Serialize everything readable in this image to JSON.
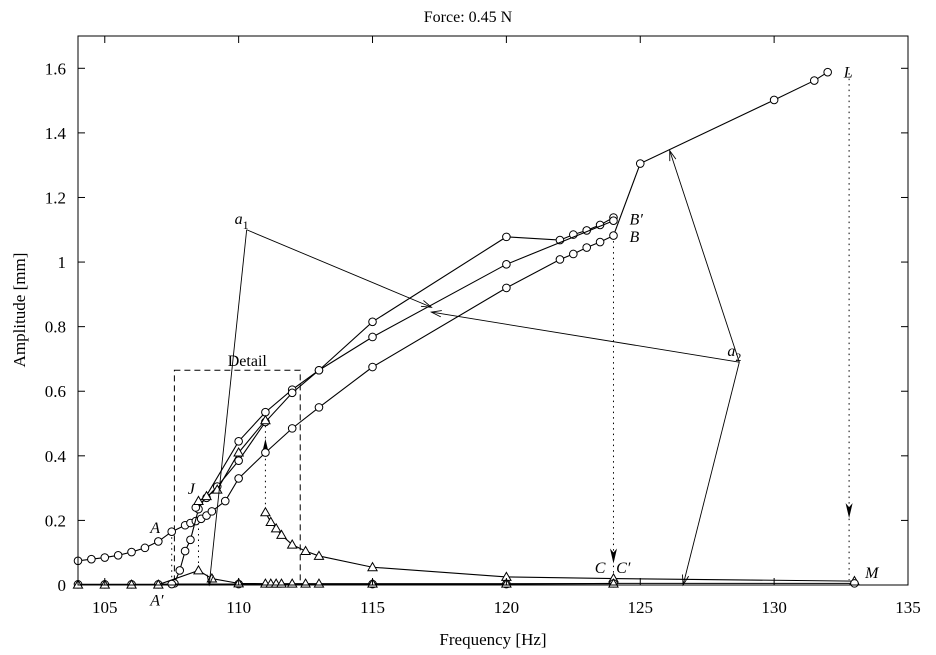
{
  "chart_data": {
    "type": "line",
    "title": "Force: 0.45 N",
    "xlabel": "Frequency [Hz]",
    "ylabel": "Amplitude [mm]",
    "xlim": [
      104,
      135
    ],
    "ylim": [
      0,
      1.7
    ],
    "xticks": [
      105,
      110,
      115,
      120,
      125,
      130,
      135
    ],
    "yticks": [
      0,
      0.2,
      0.4,
      0.6,
      0.8,
      1,
      1.2,
      1.4,
      1.6
    ],
    "xtick_labels": [
      "105",
      "110",
      "115",
      "120",
      "125",
      "130",
      "135"
    ],
    "ytick_labels": [
      "0",
      "0.2",
      "0.4",
      "0.6",
      "0.8",
      "1",
      "1.2",
      "1.4",
      "1.6"
    ],
    "grid": false,
    "series": [
      {
        "marker": "circle",
        "points": [
          [
            104,
            0.075
          ],
          [
            104.5,
            0.08
          ],
          [
            105,
            0.085
          ],
          [
            105.5,
            0.092
          ],
          [
            106,
            0.102
          ],
          [
            106.5,
            0.115
          ],
          [
            107,
            0.135
          ],
          [
            107.5,
            0.165
          ],
          [
            108,
            0.185
          ],
          [
            108.2,
            0.192
          ],
          [
            108.4,
            0.198
          ],
          [
            108.6,
            0.205
          ],
          [
            108.8,
            0.215
          ],
          [
            109,
            0.228
          ],
          [
            109.5,
            0.26
          ],
          [
            110,
            0.33
          ],
          [
            111,
            0.41
          ],
          [
            112,
            0.485
          ],
          [
            113,
            0.55
          ],
          [
            115,
            0.675
          ],
          [
            120,
            0.92
          ],
          [
            122,
            1.008
          ],
          [
            122.5,
            1.025
          ],
          [
            123,
            1.045
          ],
          [
            123.5,
            1.062
          ],
          [
            124,
            1.082
          ],
          [
            125,
            1.305
          ],
          [
            130,
            1.502
          ],
          [
            131.5,
            1.562
          ],
          [
            132,
            1.588
          ]
        ]
      },
      {
        "marker": "circle",
        "points": [
          [
            107.6,
            0.005
          ],
          [
            107.8,
            0.045
          ],
          [
            108,
            0.105
          ],
          [
            108.2,
            0.14
          ],
          [
            108.5,
            0.235
          ],
          [
            110,
            0.445
          ],
          [
            111,
            0.535
          ],
          [
            112,
            0.605
          ],
          [
            113,
            0.665
          ],
          [
            115,
            0.815
          ],
          [
            120,
            1.078
          ],
          [
            122,
            1.068
          ],
          [
            122.5,
            1.085
          ],
          [
            123,
            1.098
          ],
          [
            123.5,
            1.115
          ],
          [
            124,
            1.138
          ]
        ]
      },
      {
        "marker": "circle",
        "points": [
          [
            108.4,
            0.24
          ],
          [
            108.8,
            0.27
          ],
          [
            109.2,
            0.305
          ],
          [
            110,
            0.385
          ],
          [
            111,
            0.505
          ],
          [
            112,
            0.595
          ],
          [
            113,
            0.665
          ],
          [
            115,
            0.768
          ],
          [
            120,
            0.993
          ],
          [
            124,
            1.128
          ]
        ]
      },
      {
        "marker": "triangle",
        "points": [
          [
            108.5,
            0.26
          ],
          [
            108.8,
            0.275
          ],
          [
            109.2,
            0.295
          ],
          [
            110,
            0.41
          ],
          [
            111,
            0.51
          ]
        ]
      },
      {
        "marker": "triangle",
        "points": [
          [
            111,
            0.225
          ],
          [
            111.2,
            0.195
          ],
          [
            111.4,
            0.175
          ],
          [
            111.6,
            0.155
          ],
          [
            112,
            0.125
          ],
          [
            112.5,
            0.105
          ],
          [
            113,
            0.09
          ],
          [
            115,
            0.055
          ],
          [
            120,
            0.025
          ],
          [
            124,
            0.02
          ],
          [
            133,
            0.012
          ]
        ]
      },
      {
        "marker": "circle",
        "points": [
          [
            104,
            0.002
          ],
          [
            105,
            0.002
          ],
          [
            106,
            0.002
          ],
          [
            107,
            0.002
          ],
          [
            107.5,
            0.003
          ],
          [
            110,
            0.003
          ],
          [
            115,
            0.003
          ],
          [
            120,
            0.003
          ],
          [
            124,
            0.005
          ],
          [
            133,
            0.005
          ]
        ]
      },
      {
        "marker": "triangle",
        "points": [
          [
            104,
            0.001
          ],
          [
            105,
            0.001
          ],
          [
            106,
            0.001
          ],
          [
            107,
            0.001
          ],
          [
            108.5,
            0.045
          ],
          [
            109,
            0.02
          ],
          [
            110,
            0.005
          ],
          [
            111,
            0.004
          ],
          [
            111.2,
            0.004
          ],
          [
            111.4,
            0.004
          ],
          [
            111.6,
            0.004
          ],
          [
            112,
            0.004
          ],
          [
            112.5,
            0.004
          ],
          [
            113,
            0.004
          ],
          [
            115,
            0.004
          ],
          [
            120,
            0.004
          ],
          [
            124,
            0.004
          ]
        ]
      }
    ],
    "jumps": [
      {
        "from": [
          132.8,
          1.585
        ],
        "to": [
          132.8,
          0.015
        ],
        "arrow_at": 0.86,
        "direction": "down"
      },
      {
        "from": [
          124,
          1.082
        ],
        "to": [
          124,
          0.02
        ],
        "arrow_at": 0.93,
        "direction": "down"
      },
      {
        "from": [
          111,
          0.51
        ],
        "to": [
          111,
          0.225
        ],
        "arrow_at": 0.3,
        "direction": "up"
      },
      {
        "from": [
          107.5,
          0.165
        ],
        "to": [
          107.5,
          0.003
        ]
      },
      {
        "from": [
          108.5,
          0.26
        ],
        "to": [
          108.5,
          0.045
        ]
      }
    ],
    "detail_box": {
      "label": "Detail",
      "x": [
        107.6,
        112.3
      ],
      "y": [
        0,
        0.665
      ]
    },
    "annotations": [
      {
        "text": "L",
        "x": 132.6,
        "y": 1.59
      },
      {
        "text": "B′",
        "x": 124.6,
        "y": 1.135
      },
      {
        "text": "B",
        "x": 124.6,
        "y": 1.08
      },
      {
        "text": "A",
        "x": 106.7,
        "y": 0.18
      },
      {
        "text": "J",
        "x": 108.1,
        "y": 0.3
      },
      {
        "text": "A′",
        "x": 106.7,
        "y": -0.045
      },
      {
        "text": "C",
        "x": 123.3,
        "y": 0.055
      },
      {
        "text": "C′",
        "x": 124.1,
        "y": 0.055
      },
      {
        "text": "M",
        "x": 133.4,
        "y": 0.04
      }
    ],
    "leader_labels": [
      {
        "label": "a",
        "sub": "1",
        "x": 110.3,
        "y": 1.1,
        "targets": [
          [
            117.2,
            0.86
          ],
          [
            108.9,
            0.0
          ]
        ]
      },
      {
        "label": "a",
        "sub": "2",
        "x": 128.7,
        "y": 0.69,
        "targets": [
          [
            126.1,
            1.345
          ],
          [
            117.2,
            0.845
          ],
          [
            126.6,
            0.0
          ]
        ]
      }
    ]
  }
}
